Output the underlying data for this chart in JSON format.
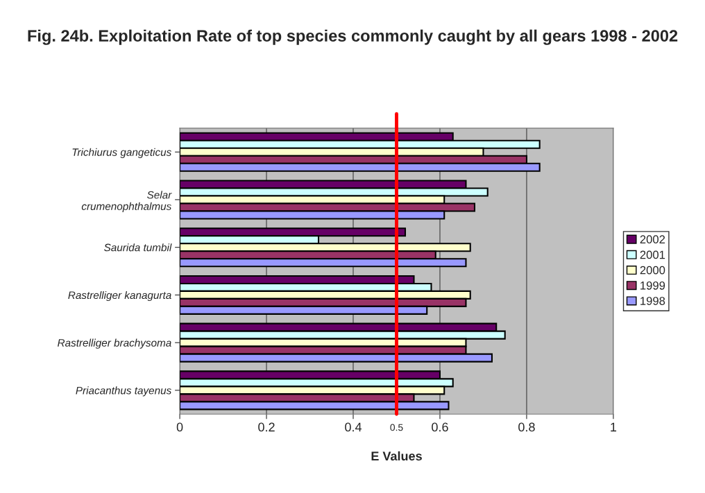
{
  "chart_data": {
    "type": "bar",
    "orientation": "horizontal",
    "title": "Fig. 24b. Exploitation Rate of top species commonly caught by all gears 1998 - 2002",
    "xlabel": "E Values",
    "categories": [
      "Trichiurus gangeticus",
      "Selar\ncrumenophthalmus",
      "Saurida tumbil",
      "Rastrelliger kanagurta",
      "Rastrelliger brachysoma",
      "Priacanthus tayenus"
    ],
    "series": [
      {
        "name": "2002",
        "color": "#660066",
        "values": [
          0.63,
          0.66,
          0.52,
          0.54,
          0.73,
          0.6
        ]
      },
      {
        "name": "2001",
        "color": "#ccffff",
        "values": [
          0.83,
          0.71,
          0.32,
          0.58,
          0.75,
          0.63
        ]
      },
      {
        "name": "2000",
        "color": "#ffffcc",
        "values": [
          0.7,
          0.61,
          0.67,
          0.67,
          0.66,
          0.61
        ]
      },
      {
        "name": "1999",
        "color": "#993366",
        "values": [
          0.8,
          0.68,
          0.59,
          0.66,
          0.66,
          0.54
        ]
      },
      {
        "name": "1998",
        "color": "#9999ff",
        "values": [
          0.83,
          0.61,
          0.66,
          0.57,
          0.72,
          0.62
        ]
      }
    ],
    "xlim": [
      0,
      1
    ],
    "xticks": [
      0,
      0.2,
      0.4,
      0.6,
      0.8,
      1
    ],
    "ref_lines": [
      {
        "axis": "x",
        "value": 0.5,
        "label": "0.5",
        "color": "#ff0000"
      }
    ],
    "grid": "x",
    "legend": "right"
  }
}
